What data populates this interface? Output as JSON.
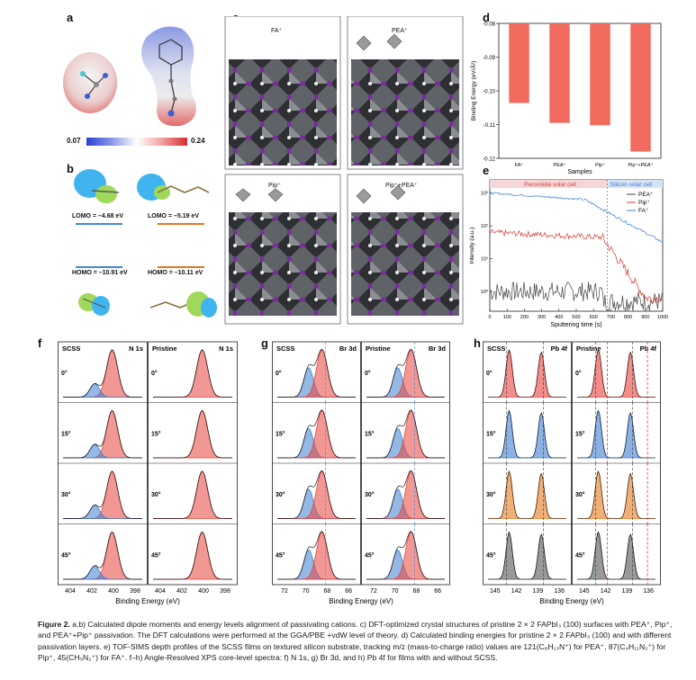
{
  "panel_letters": {
    "a": "a",
    "b": "b",
    "c": "c",
    "d": "d",
    "e": "e",
    "f": "f",
    "g": "g",
    "h": "h"
  },
  "panel_a": {
    "scale_min": "0.07",
    "scale_max": "0.24"
  },
  "panel_b": {
    "lomo_left": "LOMO = –4.68 eV",
    "lomo_right": "LOMO = –5.19 eV",
    "homo_left": "HOMO = –10.91 eV",
    "homo_right": "HOMO = –10.11 eV"
  },
  "panel_c": {
    "labels": [
      "FA⁺",
      "PEA⁺",
      "Pip⁺",
      "Pip⁺+PEA⁺"
    ]
  },
  "panel_f": {
    "left_title": "SCSS",
    "right_title": "Pristine",
    "core": "N 1s",
    "angles": [
      "0°",
      "15°",
      "30°",
      "45°"
    ],
    "ticks": [
      "404",
      "402",
      "400",
      "398"
    ],
    "xlabel": "Binding Energy (eV)"
  },
  "panel_g": {
    "left_title": "SCSS",
    "right_title": "Pristine",
    "core": "Br 3d",
    "angles": [
      "0°",
      "15°",
      "30°",
      "45°"
    ],
    "ticks": [
      "72",
      "70",
      "68",
      "66"
    ],
    "xlabel": "Binding Energy (eV)"
  },
  "panel_h": {
    "left_title": "SCSS",
    "right_title": "Pristine",
    "core": "Pb 4f",
    "angles": [
      "0°",
      "15°",
      "30°",
      "45°"
    ],
    "ticks": [
      "145",
      "142",
      "139",
      "136"
    ],
    "xlabel": "Binding Energy (eV)"
  },
  "colors": {
    "red": "#e8433c",
    "blue": "#3d7fd0",
    "orange": "#e8791e",
    "gray": "#555555",
    "bar": "#f26b5f"
  },
  "chart_data": [
    {
      "type": "bar",
      "id": "d",
      "categories": [
        "FA⁺",
        "PEA⁺",
        "Pip⁺",
        "Pip⁺+PEA⁺"
      ],
      "values": [
        -0.1036,
        -0.1095,
        -0.1102,
        -0.118
      ],
      "xlabel": "Samples",
      "ylabel": "Binding Energy (eV/Å²)",
      "ylim": [
        -0.12,
        -0.08
      ],
      "yticks": [
        "-0.08",
        "-0.09",
        "-0.10",
        "-0.11",
        "-0.12"
      ]
    },
    {
      "type": "line",
      "id": "e",
      "xlabel": "Sputtering time (s)",
      "ylabel": "Intensity (a.u.)",
      "xlim": [
        0,
        1000
      ],
      "xticks": [
        "0",
        "100",
        "200",
        "300",
        "400",
        "500",
        "600",
        "700",
        "800",
        "900",
        "1000"
      ],
      "yticks": [
        "10⁰",
        "10¹",
        "10²",
        "10³"
      ],
      "region_left": "Perovskite solar cell",
      "region_right": "Silicon solar cell",
      "series": [
        {
          "name": "PEA⁺",
          "color": "#444444"
        },
        {
          "name": "Pip⁺",
          "color": "#d93a32"
        },
        {
          "name": "FA⁺",
          "color": "#3d7fd0"
        }
      ]
    }
  ],
  "caption": {
    "fig": "Figure 2.",
    "text": " a,b) Calculated dipole moments and energy levels alignment of passivating cations. c) DFT-optimized crystal structures of pristine 2 × 2 FAPbI₃ (100) surfaces with PEA⁺, Pip⁺, and PEA⁺+Pip⁺ passivation. The DFT calculations were performed at the GGA/PBE +vdW level of theory. d) Calculated binding energies for pristine 2 × 2 FAPbI₃ (100) and with different passivation layers. e) TOF-SIMS depth profiles of the SCSS films on textured silicon substrate, tracking m/z (mass-to-charge ratio) values are 121(C₈H₁₃N⁺) for PEA⁺, 87(C₄H₁₁N₂⁺) for Pip⁺, 45(CH₅N₂⁺) for FA⁺. f–h) Angle-Resolved XPS core-level spectra: f) N 1s, g) Br 3d, and h) Pb 4f for films with and without SCSS."
  }
}
